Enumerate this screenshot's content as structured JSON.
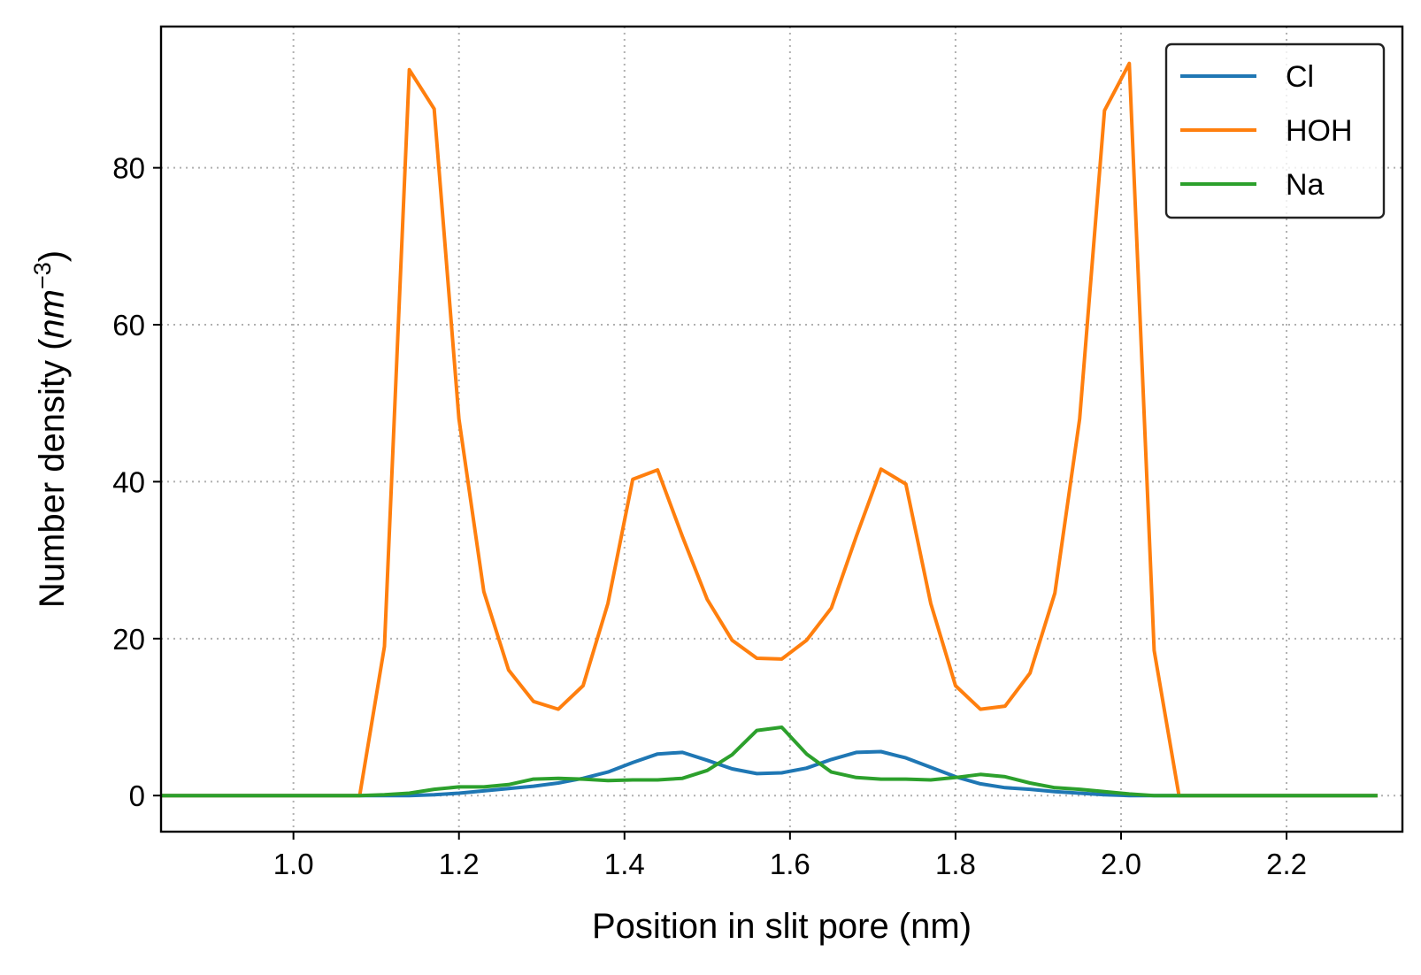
{
  "chart_data": {
    "type": "line",
    "title": "",
    "xlabel": "Position in slit pore (nm)",
    "ylabel_main": "Number density (",
    "ylabel_unit": "nm",
    "ylabel_exp": "−3",
    "ylabel_close": ")",
    "xlim": [
      0.84,
      2.34
    ],
    "ylim": [
      -4.6,
      98
    ],
    "grid": true,
    "legend_position": "top-right",
    "xticks": [
      1.0,
      1.2,
      1.4,
      1.6,
      1.8,
      2.0,
      2.2
    ],
    "xtick_labels": [
      "1.0",
      "1.2",
      "1.4",
      "1.6",
      "1.8",
      "2.0",
      "2.2"
    ],
    "yticks": [
      0,
      20,
      40,
      60,
      80
    ],
    "ytick_labels": [
      "0",
      "20",
      "40",
      "60",
      "80"
    ],
    "x": [
      0.84,
      0.87,
      0.9,
      0.93,
      0.96,
      0.99,
      1.02,
      1.05,
      1.08,
      1.11,
      1.14,
      1.17,
      1.2,
      1.23,
      1.26,
      1.29,
      1.32,
      1.35,
      1.38,
      1.41,
      1.44,
      1.47,
      1.5,
      1.53,
      1.56,
      1.59,
      1.62,
      1.65,
      1.68,
      1.71,
      1.74,
      1.77,
      1.8,
      1.83,
      1.86,
      1.89,
      1.92,
      1.95,
      1.98,
      2.01,
      2.04,
      2.07,
      2.1,
      2.13,
      2.16,
      2.19,
      2.22,
      2.25,
      2.28,
      2.31
    ],
    "series": [
      {
        "name": "Cl",
        "color": "#1f77b4",
        "values": [
          0,
          0,
          0,
          0,
          0,
          0,
          0,
          0,
          0,
          0,
          0,
          0.1,
          0.3,
          0.6,
          0.9,
          1.2,
          1.6,
          2.2,
          3.0,
          4.2,
          5.3,
          5.5,
          4.5,
          3.4,
          2.8,
          2.9,
          3.5,
          4.6,
          5.5,
          5.6,
          4.8,
          3.6,
          2.4,
          1.5,
          1.0,
          0.8,
          0.5,
          0.3,
          0.1,
          0,
          0,
          0,
          0,
          0,
          0,
          0,
          0,
          0,
          0,
          0
        ]
      },
      {
        "name": "HOH",
        "color": "#ff7f0e",
        "values": [
          0,
          0,
          0,
          0,
          0,
          0,
          0,
          0,
          0,
          19,
          92.5,
          87.5,
          48,
          26,
          16,
          12,
          11,
          14,
          24.5,
          40.3,
          41.5,
          33,
          25,
          19.8,
          17.5,
          17.4,
          19.8,
          23.9,
          33,
          41.6,
          39.7,
          24.5,
          14,
          11,
          11.4,
          15.6,
          25.8,
          48,
          87.3,
          93.3,
          18.5,
          0,
          0,
          0,
          0,
          0,
          0,
          0,
          0,
          0
        ]
      },
      {
        "name": "Na",
        "color": "#2ca02c",
        "values": [
          0,
          0,
          0,
          0,
          0,
          0,
          0,
          0,
          0,
          0.1,
          0.3,
          0.8,
          1.1,
          1.1,
          1.4,
          2.1,
          2.2,
          2.1,
          1.9,
          2.0,
          2.0,
          2.2,
          3.2,
          5.2,
          8.3,
          8.7,
          5.3,
          3.0,
          2.3,
          2.1,
          2.1,
          2.0,
          2.3,
          2.7,
          2.4,
          1.6,
          1.0,
          0.8,
          0.5,
          0.2,
          0,
          0,
          0,
          0,
          0,
          0,
          0,
          0,
          0,
          0
        ]
      }
    ]
  }
}
